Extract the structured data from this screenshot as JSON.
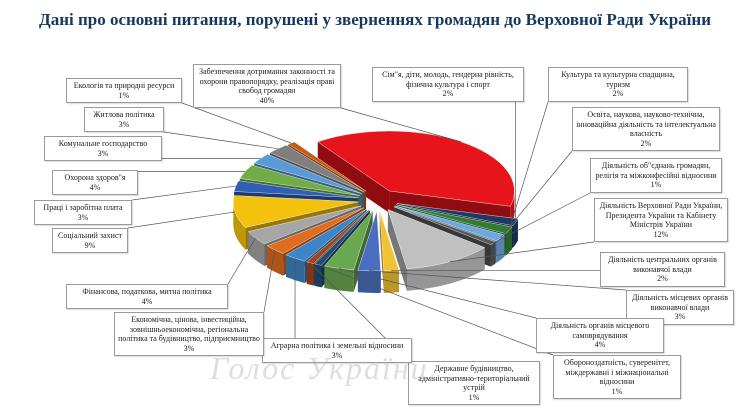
{
  "title": "Дані про основні питання, порушені у зверненнях громадян до Верховної Ради України",
  "watermark": "Голос України",
  "chart_data": {
    "type": "pie",
    "title": "Дані про основні питання, порушені у зверненнях громадян до Верховної Ради України",
    "three_d": true,
    "exploded": true,
    "slices": [
      {
        "label": "Забезпечення дотримання законності та охорони правопорядку, реалізація праві свобод громадян",
        "value": 40,
        "display": "40%",
        "color": "#e8141b"
      },
      {
        "label": "Сім\"я, діти, молодь, гендерна рівність, фізична культура і спорт",
        "value": 2,
        "display": "2%",
        "color": "#1f3864"
      },
      {
        "label": "Культура та культурна спадщина, туризм",
        "value": 2,
        "display": "2%",
        "color": "#2e7d32"
      },
      {
        "label": "Освіта, наукова, науково-технічна, інноваційна діяльність та інтелектуальна власність",
        "value": 2,
        "display": "2%",
        "color": "#6fa8dc"
      },
      {
        "label": "Діяльність об\"єднань громадян, релігія та міжконфесійні відносини",
        "value": 1,
        "display": "1%",
        "color": "#595959"
      },
      {
        "label": "Діяльність Верховної Ради України, Президента України та Кабінету Міністрів України",
        "value": 12,
        "display": "12%",
        "color": "#c0c0c0"
      },
      {
        "label": "Діяльність центральних органів виконавчої влади",
        "value": 2,
        "display": "2%",
        "color": "#f1c232"
      },
      {
        "label": "Діяльність місцевих органів виконавчої влади",
        "value": 3,
        "display": "3%",
        "color": "#4a6fc1"
      },
      {
        "label": "Діяльність органів місцевого самоврядування",
        "value": 4,
        "display": "4%",
        "color": "#6aa84f"
      },
      {
        "label": "Обороноздатність, суверенітет, міждержавні і міжнаціональні відносини",
        "value": 1,
        "display": "1%",
        "color": "#1f4e79"
      },
      {
        "label": "Державне будівництво, адміністративно-територіальний устрій",
        "value": 1,
        "display": "1%",
        "color": "#a0461c"
      },
      {
        "label": "Аграрна політика і земельні відносини",
        "value": 3,
        "display": "3%",
        "color": "#3d85c6"
      },
      {
        "label": "Економічна, цінова, інвестиційна, зовнішньоекономічна, регіональна політика та будівництво, підприємництво",
        "value": 3,
        "display": "3%",
        "color": "#e06c1f"
      },
      {
        "label": "Фінансова, податкова, митна політика",
        "value": 4,
        "display": "4%",
        "color": "#a6a6a6"
      },
      {
        "label": "Соціальний захист",
        "value": 9,
        "display": "9%",
        "color": "#f4c20d"
      },
      {
        "label": "Праці і заробітна плата",
        "value": 3,
        "display": "3%",
        "color": "#2f5fb3"
      },
      {
        "label": "Охорона здоров\"я",
        "value": 4,
        "display": "4%",
        "color": "#70ad47"
      },
      {
        "label": "Комунальне господарство",
        "value": 3,
        "display": "3%",
        "color": "#5b9bd5"
      },
      {
        "label": "Житлова політика",
        "value": 3,
        "display": "3%",
        "color": "#7f7f7f"
      },
      {
        "label": "Екологія та природні ресурси",
        "value": 1,
        "display": "1%",
        "color": "#c55a11"
      }
    ]
  }
}
